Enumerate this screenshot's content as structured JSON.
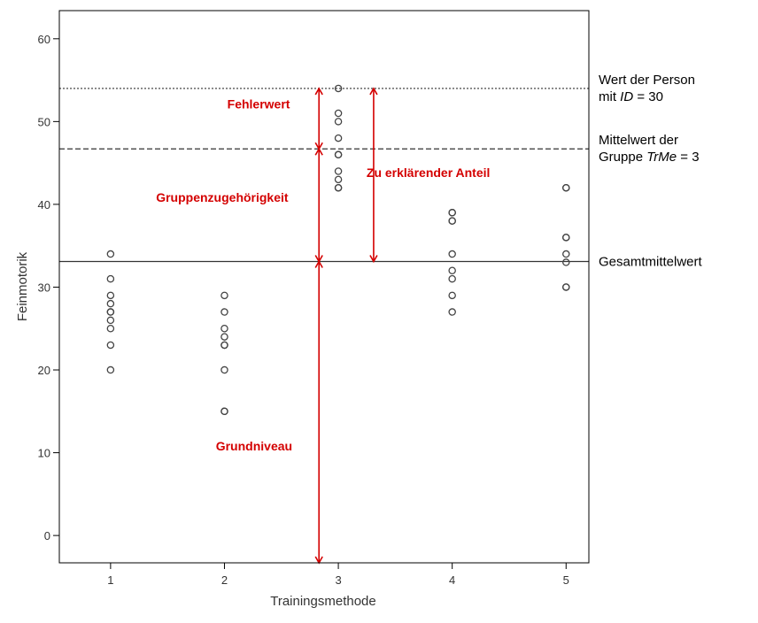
{
  "chart_data": {
    "type": "scatter",
    "xlabel": "Trainingsmethode",
    "ylabel": "Feinmotorik",
    "x_ticks": [
      1,
      2,
      3,
      4,
      5
    ],
    "y_ticks": [
      0,
      10,
      20,
      30,
      40,
      50,
      60
    ],
    "xlim": [
      0.55,
      5.2
    ],
    "ylim": [
      -3.3,
      63.4
    ],
    "grid": false,
    "points": [
      {
        "x": 1,
        "y": 34
      },
      {
        "x": 1,
        "y": 31
      },
      {
        "x": 1,
        "y": 29
      },
      {
        "x": 1,
        "y": 28
      },
      {
        "x": 1,
        "y": 27
      },
      {
        "x": 1,
        "y": 27
      },
      {
        "x": 1,
        "y": 26
      },
      {
        "x": 1,
        "y": 25
      },
      {
        "x": 1,
        "y": 23
      },
      {
        "x": 1,
        "y": 20
      },
      {
        "x": 2,
        "y": 29
      },
      {
        "x": 2,
        "y": 27
      },
      {
        "x": 2,
        "y": 25
      },
      {
        "x": 2,
        "y": 24
      },
      {
        "x": 2,
        "y": 23
      },
      {
        "x": 2,
        "y": 23
      },
      {
        "x": 2,
        "y": 20
      },
      {
        "x": 2,
        "y": 15
      },
      {
        "x": 2,
        "y": 15
      },
      {
        "x": 3,
        "y": 54
      },
      {
        "x": 3,
        "y": 51
      },
      {
        "x": 3,
        "y": 50
      },
      {
        "x": 3,
        "y": 48
      },
      {
        "x": 3,
        "y": 46
      },
      {
        "x": 3,
        "y": 46
      },
      {
        "x": 3,
        "y": 44
      },
      {
        "x": 3,
        "y": 43
      },
      {
        "x": 3,
        "y": 42
      },
      {
        "x": 3,
        "y": 42
      },
      {
        "x": 4,
        "y": 39
      },
      {
        "x": 4,
        "y": 39
      },
      {
        "x": 4,
        "y": 38
      },
      {
        "x": 4,
        "y": 38
      },
      {
        "x": 4,
        "y": 34
      },
      {
        "x": 4,
        "y": 32
      },
      {
        "x": 4,
        "y": 31
      },
      {
        "x": 4,
        "y": 29
      },
      {
        "x": 4,
        "y": 27
      },
      {
        "x": 5,
        "y": 42
      },
      {
        "x": 5,
        "y": 42
      },
      {
        "x": 5,
        "y": 36
      },
      {
        "x": 5,
        "y": 36
      },
      {
        "x": 5,
        "y": 34
      },
      {
        "x": 5,
        "y": 33
      },
      {
        "x": 5,
        "y": 30
      },
      {
        "x": 5,
        "y": 30
      }
    ],
    "reference_lines": [
      {
        "name": "person",
        "y": 54,
        "style": "dotted",
        "label_lines": [
          [
            {
              "t": "Wert der Person"
            }
          ],
          [
            {
              "t": "mit "
            },
            {
              "t": "ID",
              "i": true
            },
            {
              "t": " = 30"
            }
          ]
        ]
      },
      {
        "name": "group-mean",
        "y": 46.7,
        "style": "dashed",
        "label_lines": [
          [
            {
              "t": "Mittelwert der"
            }
          ],
          [
            {
              "t": "Gruppe "
            },
            {
              "t": "TrMe",
              "i": true
            },
            {
              "t": " = 3"
            }
          ]
        ]
      },
      {
        "name": "grand-mean",
        "y": 33.1,
        "style": "solid",
        "label_lines": [
          [
            {
              "t": "Gesamtmittelwert"
            }
          ]
        ]
      }
    ],
    "arrows": [
      {
        "name": "fehlerwert",
        "x": 2.83,
        "y1": 46.7,
        "y2": 54
      },
      {
        "name": "gruppenzugehoerigkeit",
        "x": 2.83,
        "y1": 33.1,
        "y2": 46.7
      },
      {
        "name": "grundniveau",
        "x": 2.83,
        "y1": -3.3,
        "y2": 33.1
      },
      {
        "name": "zu-erklaerender-anteil",
        "x": 3.31,
        "y1": 33.1,
        "y2": 54
      }
    ],
    "annotations": [
      {
        "name": "fehlerwert",
        "text": "Fehlerwert",
        "x": 2.3,
        "y": 51.6
      },
      {
        "name": "gruppenzugehoerigkeit",
        "text": "Gruppenzugehörigkeit",
        "x": 1.98,
        "y": 40.3
      },
      {
        "name": "zu-erklaerender-anteil",
        "text": "Zu erklärender Anteil",
        "x": 3.79,
        "y": 43.3
      },
      {
        "name": "grundniveau",
        "text": "Grundniveau",
        "x": 2.26,
        "y": 10.3
      }
    ],
    "colors": {
      "axis": "#000000",
      "points": "#444444",
      "annotation": "#d40000"
    }
  }
}
